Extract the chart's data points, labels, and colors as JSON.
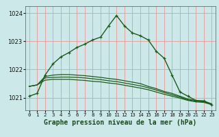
{
  "background_color": "#cce8e8",
  "grid_color": "#e8a0a0",
  "line_color": "#1a5c1a",
  "title": "Graphe pression niveau de la mer (hPa)",
  "ylim": [
    1020.55,
    1024.25
  ],
  "xlim": [
    -0.5,
    23.5
  ],
  "yticks": [
    1021,
    1022,
    1023,
    1024
  ],
  "xticks": [
    0,
    1,
    2,
    3,
    4,
    5,
    6,
    7,
    8,
    9,
    10,
    11,
    12,
    13,
    14,
    15,
    16,
    17,
    18,
    19,
    20,
    21,
    22,
    23
  ],
  "main_line": [
    1021.05,
    1021.15,
    1021.8,
    1022.2,
    1022.45,
    1022.6,
    1022.78,
    1022.9,
    1023.05,
    1023.15,
    1023.55,
    1023.92,
    1023.55,
    1023.3,
    1023.2,
    1023.05,
    1022.65,
    1022.4,
    1021.8,
    1021.2,
    1021.05,
    1020.9,
    1020.88,
    1020.75
  ],
  "line2": [
    1021.4,
    1021.45,
    1021.75,
    1021.8,
    1021.82,
    1021.82,
    1021.8,
    1021.78,
    1021.75,
    1021.72,
    1021.68,
    1021.65,
    1021.6,
    1021.55,
    1021.5,
    1021.4,
    1021.32,
    1021.22,
    1021.15,
    1021.05,
    1020.95,
    1020.9,
    1020.88,
    1020.78
  ],
  "line3": [
    1021.4,
    1021.45,
    1021.7,
    1021.72,
    1021.73,
    1021.73,
    1021.72,
    1021.7,
    1021.67,
    1021.64,
    1021.6,
    1021.57,
    1021.52,
    1021.47,
    1021.42,
    1021.35,
    1021.27,
    1021.18,
    1021.1,
    1021.02,
    1020.92,
    1020.87,
    1020.85,
    1020.76
  ],
  "line4": [
    1021.4,
    1021.45,
    1021.62,
    1021.65,
    1021.65,
    1021.65,
    1021.63,
    1021.61,
    1021.58,
    1021.56,
    1021.52,
    1021.49,
    1021.44,
    1021.39,
    1021.34,
    1021.28,
    1021.2,
    1021.12,
    1021.05,
    1020.98,
    1020.9,
    1020.85,
    1020.83,
    1020.75
  ]
}
